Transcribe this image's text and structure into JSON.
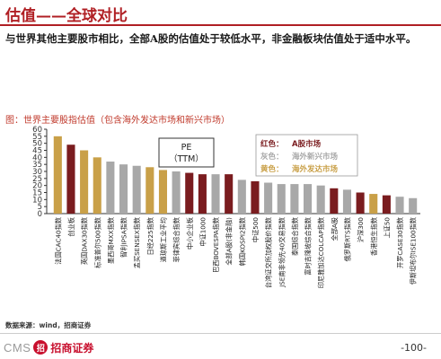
{
  "header": {
    "title": "估值——全球对比"
  },
  "intro": "与世界其他主要股市相比，全部A股的估值处于较低水平，非金融板块估值处于适中水平。",
  "chart_caption": "图：世界主要股指估值（包含海外发达市场和新兴市场）",
  "chart_data": {
    "type": "bar",
    "title": "图：世界主要股指估值（包含海外发达市场和新兴市场）",
    "annotation": [
      "PE",
      "（TTM）"
    ],
    "ylim": [
      0,
      60
    ],
    "yticks": [
      0,
      5,
      10,
      15,
      20,
      25,
      30,
      35,
      40,
      45,
      50,
      55,
      60
    ],
    "grid": false,
    "legend_position": "top-right",
    "legend": [
      {
        "key": "red",
        "label": "红色：",
        "text": "A股市场"
      },
      {
        "key": "gray",
        "label": "灰色：",
        "text": "海外新兴市场"
      },
      {
        "key": "gold",
        "label": "黄色：",
        "text": "海外发达市场"
      }
    ],
    "colors": {
      "red": "#7a1c1f",
      "gray": "#a8a8a8",
      "gold": "#c9a048"
    },
    "categories": [
      "法国CAC40指数",
      "创业板",
      "英国DAX30指数",
      "标准普尔500指数",
      "墨西哥MXX指数",
      "智利IPSA指数",
      "孟买SENSEX指数",
      "日经225指数",
      "道琼斯工业平均",
      "菲律宾综合指数",
      "中小企业板",
      "中证1000",
      "巴西BOVESPA指数",
      "全部A股(非金融)",
      "韩国KOSPI2指数",
      "中证500",
      "台湾证交所加权股价指数",
      "JSE南非领先40交易指数",
      "泰国综合指数",
      "富时吉隆坡综合指数",
      "印尼雅加达COLCAP指数",
      "全部A股",
      "俄罗斯RTS指数",
      "沪深300",
      "香港恒生指数",
      "上证50",
      "开罗CASE30指数",
      "伊斯坦布尔ISE100指数"
    ],
    "values": [
      55,
      49,
      45,
      40,
      37,
      35,
      34,
      33,
      31,
      30,
      29,
      28,
      28,
      28,
      24,
      23,
      22,
      21,
      21,
      21,
      20,
      18,
      17,
      15,
      14,
      13,
      12,
      11
    ],
    "series_key": [
      "gold",
      "red",
      "gold",
      "gold",
      "gray",
      "gray",
      "gray",
      "gold",
      "gold",
      "gray",
      "red",
      "red",
      "gray",
      "red",
      "gray",
      "red",
      "gray",
      "gray",
      "gray",
      "gray",
      "gray",
      "red",
      "gray",
      "red",
      "gold",
      "red",
      "gray",
      "gray"
    ]
  },
  "source": "数据来源：wind，招商证券",
  "footer": {
    "logo_en": "CMS",
    "logo_mark": "招",
    "logo_cn": "招商证券",
    "page": "-100-"
  }
}
